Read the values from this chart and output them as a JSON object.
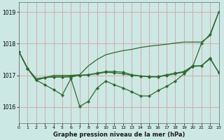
{
  "title": "Graphe pression niveau de la mer (hPa)",
  "bg_color": "#cce8e4",
  "grid_color": "#d4a0a0",
  "line_color": "#2a6b2a",
  "ylim": [
    1015.5,
    1019.3
  ],
  "xlim": [
    0,
    23
  ],
  "yticks": [
    1016,
    1017,
    1018,
    1019
  ],
  "xticks": [
    0,
    1,
    2,
    3,
    4,
    5,
    6,
    7,
    8,
    9,
    10,
    11,
    12,
    13,
    14,
    15,
    16,
    17,
    18,
    19,
    20,
    21,
    22,
    23
  ],
  "series_no_marker": [
    [
      1017.75,
      1017.22,
      1016.9,
      1016.93,
      1017.0,
      1017.0,
      1017.0,
      1017.02,
      1017.3,
      1017.5,
      1017.65,
      1017.72,
      1017.78,
      1017.82,
      1017.88,
      1017.92,
      1017.95,
      1017.98,
      1018.02,
      1018.05,
      1018.05,
      1018.05,
      1018.25,
      1019.0
    ]
  ],
  "series_with_marker": [
    [
      1017.75,
      1017.22,
      1016.85,
      1016.7,
      1016.55,
      1016.38,
      1016.9,
      1016.02,
      1016.18,
      1016.6,
      1016.82,
      1016.7,
      1016.6,
      1016.48,
      1016.35,
      1016.35,
      1016.52,
      1016.65,
      1016.82,
      1017.05,
      1017.28,
      1018.0,
      1018.3,
      1019.0
    ],
    [
      1017.75,
      1017.22,
      1016.85,
      1016.93,
      1016.95,
      1016.95,
      1016.95,
      1017.0,
      1017.02,
      1017.05,
      1017.1,
      1017.08,
      1017.05,
      1017.0,
      1016.98,
      1016.95,
      1016.95,
      1017.0,
      1017.05,
      1017.1,
      1017.28,
      1017.3,
      1017.55,
      1017.08
    ],
    [
      1017.75,
      1017.22,
      1016.85,
      1016.93,
      1016.95,
      1016.95,
      1016.97,
      1017.0,
      1017.02,
      1017.07,
      1017.12,
      1017.12,
      1017.1,
      1017.02,
      1016.98,
      1016.96,
      1016.96,
      1017.02,
      1017.07,
      1017.12,
      1017.3,
      1017.3,
      1017.52,
      1017.1
    ]
  ]
}
